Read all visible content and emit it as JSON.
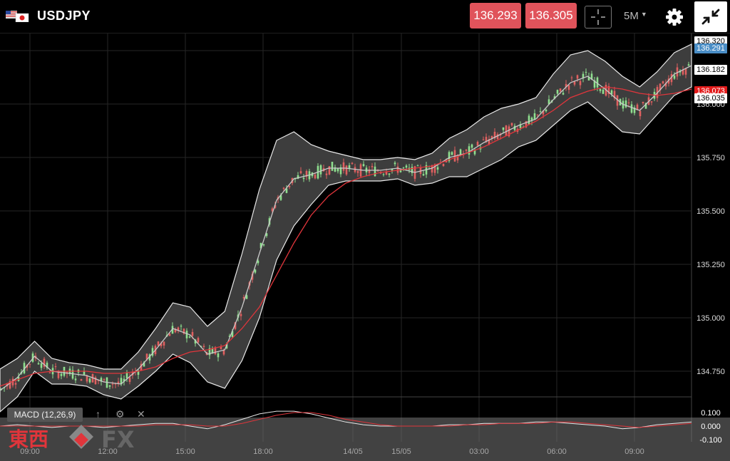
{
  "header": {
    "symbol": "USDJPY",
    "sell_price": "136.293",
    "buy_price": "136.305",
    "timeframe": "5M",
    "price_button_color": "#e0535b"
  },
  "price_labels": {
    "current_blue": "136.291",
    "bb_upper": "136.182",
    "bb_lower": "136.035",
    "top_partial": "136.320",
    "red_partial": "136.073"
  },
  "macd": {
    "label": "MACD (12,26,9)",
    "axis": [
      "0.100",
      "0.000",
      "-0.100"
    ]
  },
  "logo": {
    "kanji": "東西",
    "fx": "FX"
  },
  "chart_data": {
    "type": "line",
    "x_ticks": [
      "09:00",
      "12:00",
      "15:00",
      "18:00",
      "14/05",
      "15/05",
      "03:00",
      "06:00",
      "09:00"
    ],
    "y_ticks": [
      "136.250",
      "136.000",
      "135.750",
      "135.500",
      "135.250",
      "135.000",
      "134.750"
    ],
    "ylim": [
      134.62,
      136.33
    ],
    "grid": true,
    "series": [
      {
        "color": "#c9c9c9",
        "values": [
          134.66,
          134.72,
          134.82,
          134.75,
          134.74,
          134.73,
          134.7,
          134.69,
          134.76,
          134.85,
          134.95,
          134.92,
          134.83,
          134.85,
          135.05,
          135.3,
          135.55,
          135.65,
          135.67,
          135.7,
          135.7,
          135.69,
          135.69,
          135.7,
          135.68,
          135.7,
          135.75,
          135.77,
          135.82,
          135.86,
          135.9,
          135.93,
          136.02,
          136.1,
          136.13,
          136.07,
          136.0,
          135.97,
          136.05,
          136.14,
          136.18
        ]
      },
      {
        "color": "#e0353b",
        "values": [
          134.68,
          134.71,
          134.74,
          134.75,
          134.75,
          134.75,
          134.74,
          134.74,
          134.75,
          134.77,
          134.81,
          134.84,
          134.85,
          134.87,
          134.95,
          135.05,
          135.2,
          135.35,
          135.48,
          135.57,
          135.63,
          135.66,
          135.68,
          135.69,
          135.7,
          135.71,
          135.74,
          135.77,
          135.8,
          135.84,
          135.88,
          135.92,
          135.97,
          136.03,
          136.06,
          136.08,
          136.07,
          136.05,
          136.04,
          136.05,
          136.07
        ]
      }
    ]
  }
}
